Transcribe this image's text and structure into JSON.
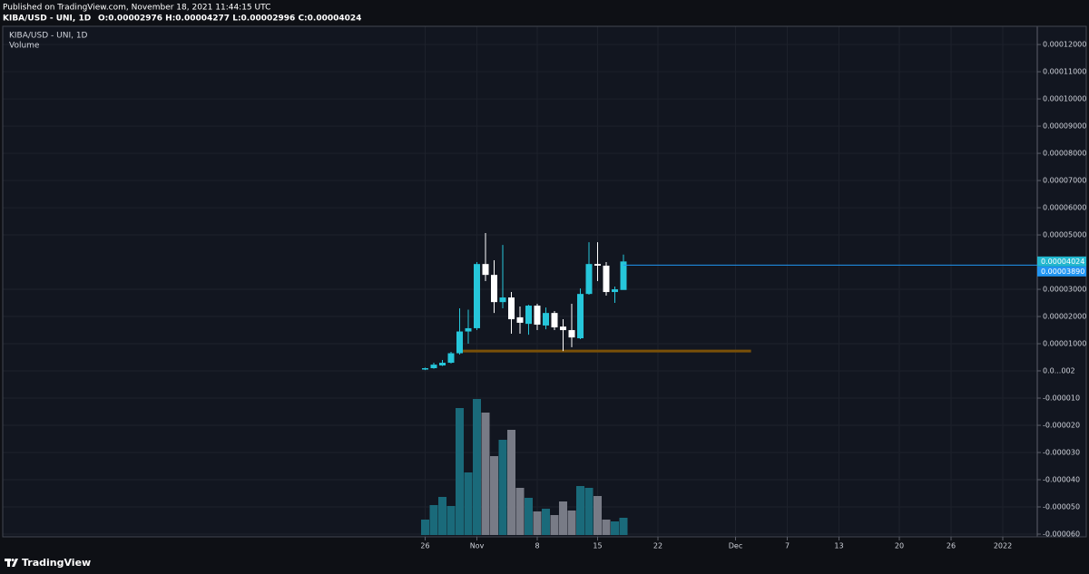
{
  "chart_data": {
    "type": "candlestick",
    "subtitle": "Published on TradingView.com, November 18, 2021 11:44:15 UTC",
    "title": "KIBA/USD - UNI, 1D",
    "ohlc_legend": "O:0.00002976 H:0.00004277 L:0.00002996 C:0.00004024",
    "volume_title": "Volume",
    "brand": "TradingView",
    "x": [
      0,
      1,
      2,
      3,
      4,
      5,
      6,
      7,
      8,
      9,
      10,
      11,
      12,
      13,
      14,
      15,
      16,
      17,
      18,
      19,
      20,
      21,
      22,
      23
    ],
    "open": [
      5e-07,
      1e-06,
      2e-06,
      3e-06,
      6.5e-06,
      1.45e-05,
      1.57e-05,
      3.93e-05,
      3.53e-05,
      2.53e-05,
      2.7e-05,
      1.97e-05,
      1.73e-05,
      2.4e-05,
      1.67e-05,
      2.13e-05,
      1.63e-05,
      1.5e-05,
      1.2e-05,
      2.83e-05,
      3.93e-05,
      3.87e-05,
      2.9e-05,
      2.976e-05
    ],
    "high": [
      1.2e-06,
      3e-06,
      4e-06,
      7e-06,
      2.3e-05,
      2.25e-05,
      4e-05,
      5.07e-05,
      4.07e-05,
      4.63e-05,
      2.9e-05,
      2.37e-05,
      2.43e-05,
      2.47e-05,
      2.33e-05,
      2.2e-05,
      1.9e-05,
      2.47e-05,
      3.03e-05,
      4.73e-05,
      4.73e-05,
      4e-05,
      3.1e-05,
      4.277e-05
    ],
    "low": [
      3e-07,
      8e-07,
      1.8e-06,
      2.7e-06,
      6e-06,
      1e-05,
      1.5e-05,
      3.3e-05,
      2.13e-05,
      2.3e-05,
      1.37e-05,
      1.37e-05,
      1.33e-05,
      1.5e-05,
      1.53e-05,
      1.5e-05,
      7.3e-06,
      8.7e-06,
      1.17e-05,
      2.8e-05,
      3.3e-05,
      2.77e-05,
      2.5e-05,
      2.996e-05
    ],
    "close": [
      1e-06,
      2.3e-06,
      3e-06,
      6.5e-06,
      1.45e-05,
      1.57e-05,
      3.93e-05,
      3.53e-05,
      2.53e-05,
      2.7e-05,
      1.9e-05,
      1.77e-05,
      2.4e-05,
      1.7e-05,
      2.13e-05,
      1.6e-05,
      1.5e-05,
      1.23e-05,
      2.83e-05,
      3.93e-05,
      3.87e-05,
      2.9e-05,
      3e-05,
      4.024e-05
    ],
    "volume": [
      17,
      33,
      42,
      32,
      140,
      69,
      150,
      135,
      87,
      105,
      116,
      52,
      41,
      26,
      29,
      22,
      37,
      27,
      54,
      52,
      43,
      17,
      15,
      19
    ],
    "volume_ylim": [
      0,
      160
    ],
    "up_color": "#26c6da",
    "down_color": "#ffffff",
    "volume_up_color": "#1a6a7a",
    "volume_down_color": "#787b86",
    "xlim": [
      -49,
      71
    ],
    "ylim": [
      -6.1e-05,
      0.0001267
    ],
    "xticks": [
      {
        "value": 0,
        "label": "26"
      },
      {
        "value": 6,
        "label": "Nov"
      },
      {
        "value": 13,
        "label": "8"
      },
      {
        "value": 20,
        "label": "15"
      },
      {
        "value": 27,
        "label": "22"
      },
      {
        "value": 36,
        "label": "Dec"
      },
      {
        "value": 42,
        "label": "7"
      },
      {
        "value": 48,
        "label": "13"
      },
      {
        "value": 55,
        "label": "20"
      },
      {
        "value": 61,
        "label": "26"
      },
      {
        "value": 67,
        "label": "2022"
      }
    ],
    "yticks": [
      {
        "value": 0.00012,
        "label": "0.00012000"
      },
      {
        "value": 0.00011,
        "label": "0.00011000"
      },
      {
        "value": 0.0001,
        "label": "0.00010000"
      },
      {
        "value": 9e-05,
        "label": "0.00009000"
      },
      {
        "value": 8e-05,
        "label": "0.00008000"
      },
      {
        "value": 7e-05,
        "label": "0.00007000"
      },
      {
        "value": 6e-05,
        "label": "0.00006000"
      },
      {
        "value": 5e-05,
        "label": "0.00005000"
      },
      {
        "value": 3e-05,
        "label": "0.00003000"
      },
      {
        "value": 2e-05,
        "label": "0.00002000"
      },
      {
        "value": 1e-05,
        "label": "0.00001000"
      },
      {
        "value": 2e-08,
        "label": "0.0...002"
      },
      {
        "value": -1e-05,
        "label": "-0.000010"
      },
      {
        "value": -2e-05,
        "label": "-0.000020"
      },
      {
        "value": -3e-05,
        "label": "-0.000030"
      },
      {
        "value": -4e-05,
        "label": "-0.000040"
      },
      {
        "value": -5e-05,
        "label": "-0.000050"
      },
      {
        "value": -6e-05,
        "label": "-0.000060"
      }
    ],
    "grid": true,
    "price_labels": [
      {
        "value": 4.024e-05,
        "label": "0.00004024",
        "color": "#22b8cf"
      },
      {
        "value": 3.89e-05,
        "label": "0.00003890",
        "color": "#2196f3"
      }
    ],
    "level_line": {
      "value": 7.3e-06,
      "x": [
        3.9,
        37.8
      ],
      "color": "#7a5008"
    }
  }
}
